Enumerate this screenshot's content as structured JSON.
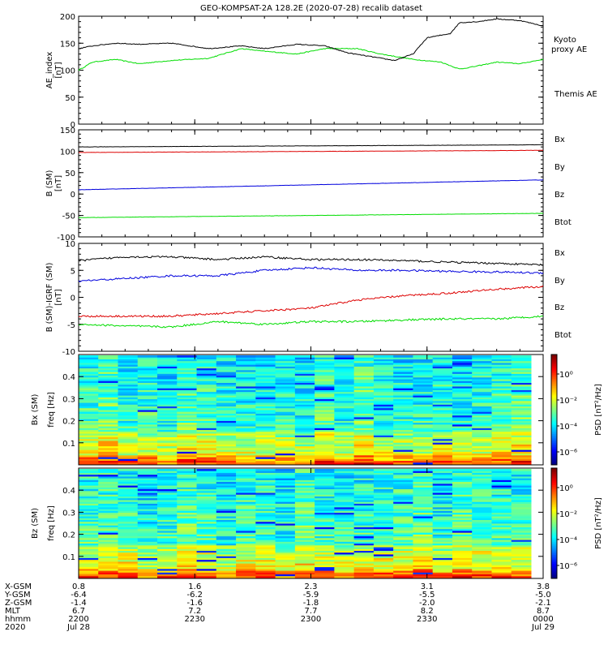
{
  "title": "GEO-KOMPSAT-2A 128.2E (2020-07-28) recalib dataset",
  "colors": {
    "black": "#000000",
    "green": "#00dd00",
    "blue": "#0000dd",
    "red": "#dd0000"
  },
  "chart_data": [
    {
      "type": "line",
      "ylabel": "AE_index",
      "yunit": "[nT]",
      "ylim": [
        0,
        200
      ],
      "yticks": [
        "0",
        "50",
        "100",
        "150",
        "200"
      ],
      "series": [
        {
          "name": "Kyoto proxy AE",
          "color": "#00dd00",
          "x": [
            0,
            0.03,
            0.08,
            0.13,
            0.2,
            0.28,
            0.35,
            0.4,
            0.47,
            0.53,
            0.6,
            0.65,
            0.72,
            0.78,
            0.82,
            0.86,
            0.9,
            0.95,
            1.0
          ],
          "values": [
            100,
            115,
            120,
            112,
            118,
            122,
            140,
            135,
            130,
            140,
            140,
            130,
            120,
            115,
            102,
            108,
            115,
            112,
            120
          ]
        },
        {
          "name": "Themis AE",
          "color": "#000000",
          "x": [
            0,
            0.03,
            0.08,
            0.13,
            0.2,
            0.28,
            0.35,
            0.4,
            0.47,
            0.53,
            0.58,
            0.63,
            0.68,
            0.72,
            0.75,
            0.8,
            0.82,
            0.86,
            0.9,
            0.95,
            1.0
          ],
          "values": [
            140,
            145,
            150,
            148,
            150,
            140,
            145,
            140,
            148,
            145,
            132,
            125,
            118,
            130,
            160,
            168,
            188,
            190,
            195,
            192,
            182
          ]
        }
      ]
    },
    {
      "type": "line",
      "ylabel": "B (SM)",
      "yunit": "[nT]",
      "ylim": [
        -100,
        150
      ],
      "yticks": [
        "-100",
        "-50",
        "0",
        "50",
        "100",
        "150"
      ],
      "series": [
        {
          "name": "Bx",
          "color": "#0000dd",
          "x": [
            0,
            1
          ],
          "values": [
            10,
            33
          ]
        },
        {
          "name": "By",
          "color": "#00dd00",
          "x": [
            0,
            1
          ],
          "values": [
            -55,
            -45
          ]
        },
        {
          "name": "Bz",
          "color": "#dd0000",
          "x": [
            0,
            1
          ],
          "values": [
            97,
            102
          ]
        },
        {
          "name": "Btot",
          "color": "#000000",
          "x": [
            0,
            1
          ],
          "values": [
            110,
            115
          ]
        }
      ]
    },
    {
      "type": "line",
      "ylabel": "B (SM)-IGRF (SM)",
      "yunit": "[nT]",
      "ylim": [
        -10,
        10
      ],
      "yticks": [
        "-10",
        "-5",
        "0",
        "5",
        "10"
      ],
      "series": [
        {
          "name": "Bx",
          "color": "#0000dd",
          "x": [
            0,
            0.1,
            0.2,
            0.3,
            0.4,
            0.5,
            0.6,
            0.7,
            0.8,
            0.9,
            1.0
          ],
          "values": [
            3,
            3.5,
            4,
            4,
            5,
            5.5,
            5,
            5,
            4.8,
            4.7,
            4.5
          ]
        },
        {
          "name": "By",
          "color": "#00dd00",
          "x": [
            0,
            0.1,
            0.2,
            0.3,
            0.4,
            0.5,
            0.6,
            0.7,
            0.8,
            0.9,
            1.0
          ],
          "values": [
            -5,
            -5.3,
            -5.5,
            -4.5,
            -5,
            -4.5,
            -4.5,
            -4.2,
            -4,
            -4,
            -3.5
          ]
        },
        {
          "name": "Bz",
          "color": "#dd0000",
          "x": [
            0,
            0.1,
            0.2,
            0.3,
            0.4,
            0.5,
            0.6,
            0.7,
            0.8,
            0.9,
            1.0
          ],
          "values": [
            -3.5,
            -3.5,
            -3.5,
            -3,
            -2.5,
            -2,
            -0.5,
            0.3,
            0.8,
            1.5,
            2
          ]
        },
        {
          "name": "Btot",
          "color": "#000000",
          "x": [
            0,
            0.1,
            0.2,
            0.3,
            0.4,
            0.5,
            0.6,
            0.7,
            0.8,
            0.9,
            1.0
          ],
          "values": [
            6.8,
            7.5,
            7.5,
            7,
            7.5,
            7,
            7,
            6.8,
            6.5,
            6.3,
            6
          ]
        }
      ]
    },
    {
      "type": "heatmap",
      "ylabel": "Bx (SM)",
      "yunit": "freq [Hz]",
      "ylim": [
        0,
        0.5
      ],
      "yticks": [
        "0.1",
        "0.2",
        "0.3",
        "0.4"
      ],
      "colorbar_label": "PSD [nT²/Hz]",
      "colorbar_ticks": [
        "10⁰",
        "10⁻²",
        "10⁻⁴",
        "10⁻⁶"
      ],
      "colorbar_range": [
        -7,
        1.5
      ]
    },
    {
      "type": "heatmap",
      "ylabel": "Bz (SM)",
      "yunit": "freq [Hz]",
      "ylim": [
        0,
        0.5
      ],
      "yticks": [
        "0.1",
        "0.2",
        "0.3",
        "0.4"
      ],
      "colorbar_label": "PSD [nT²/Hz]",
      "colorbar_ticks": [
        "10⁰",
        "10⁻²",
        "10⁻⁴",
        "10⁻⁶"
      ],
      "colorbar_range": [
        -7,
        1.5
      ]
    }
  ],
  "xaxis": {
    "row_labels": [
      "X-GSM",
      "Y-GSM",
      "Z-GSM",
      "MLT",
      "hhmm",
      "2020"
    ],
    "columns": [
      {
        "values": [
          "0.8",
          "-6.4",
          "-1.4",
          "6.7",
          "2200",
          "Jul 28"
        ]
      },
      {
        "values": [
          "1.6",
          "-6.2",
          "-1.6",
          "7.2",
          "2230",
          ""
        ]
      },
      {
        "values": [
          "2.3",
          "-5.9",
          "-1.8",
          "7.7",
          "2300",
          ""
        ]
      },
      {
        "values": [
          "3.1",
          "-5.5",
          "-2.0",
          "8.2",
          "2330",
          ""
        ]
      },
      {
        "values": [
          "3.8",
          "-5.0",
          "-2.1",
          "8.7",
          "0000",
          "Jul 29"
        ]
      }
    ]
  }
}
